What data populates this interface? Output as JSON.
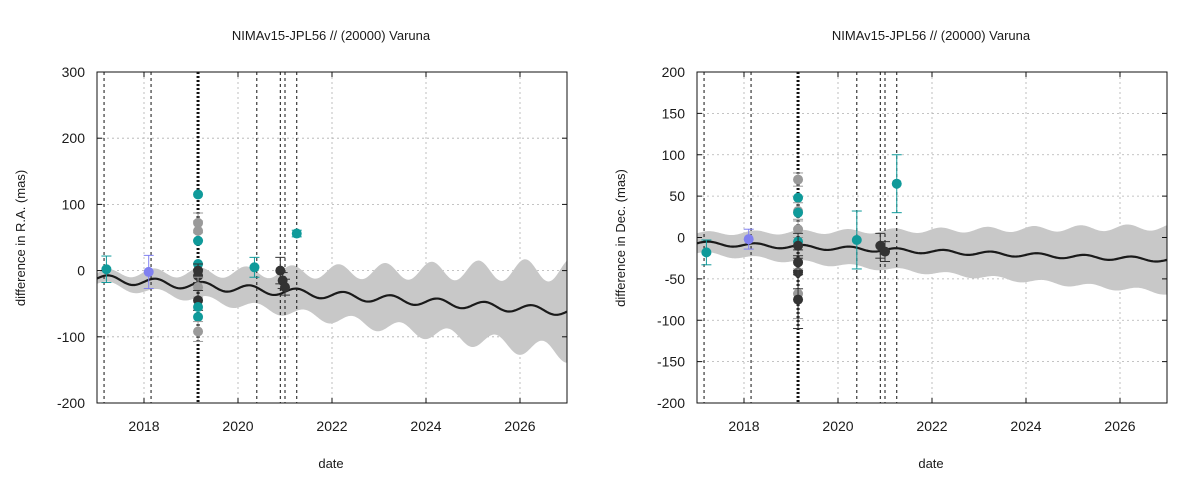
{
  "colors": {
    "band": "#c8c8c8",
    "model": "#1a1a1a",
    "teal": "#0f9a9a",
    "gray": "#9a9a9a",
    "dark": "#333333",
    "purple": "#8080f0",
    "grid": "#b0b0b0"
  },
  "chart_data": [
    {
      "type": "scatter",
      "title": "NIMAv15-JPL56 // (20000) Varuna",
      "xlabel": "date",
      "ylabel": "difference in R.A. (mas)",
      "xlim": [
        2017.0,
        2027.0
      ],
      "ylim": [
        -200,
        300
      ],
      "x_ticks": [
        2018,
        2020,
        2022,
        2024,
        2026
      ],
      "y_ticks": [
        -200,
        -100,
        0,
        100,
        200,
        300
      ],
      "grid": true,
      "event_lines": [
        2017.15,
        2018.15,
        2019.15,
        2020.4,
        2020.9,
        2021.0,
        2021.25
      ],
      "event_lines_bold": [
        2019.15
      ],
      "model": {
        "trend_start": -12,
        "trend_slope": -5.0,
        "amplitude": 6.0,
        "period": 1.0
      },
      "band": {
        "half_width_start": 8,
        "half_width_slope": 4.0,
        "osc_amplitude": 30,
        "phase_shift": 0.2
      },
      "points": [
        {
          "x": 2017.2,
          "y": 2,
          "err": 20,
          "color": "teal"
        },
        {
          "x": 2018.1,
          "y": -2,
          "err": 25,
          "color": "purple"
        },
        {
          "x": 2019.15,
          "y": 115,
          "err": 0,
          "color": "teal"
        },
        {
          "x": 2019.15,
          "y": 72,
          "err": 15,
          "color": "gray"
        },
        {
          "x": 2019.15,
          "y": 60,
          "err": 15,
          "color": "gray"
        },
        {
          "x": 2019.15,
          "y": 45,
          "err": 0,
          "color": "teal"
        },
        {
          "x": 2019.15,
          "y": 10,
          "err": 0,
          "color": "teal"
        },
        {
          "x": 2019.15,
          "y": 0,
          "err": 10,
          "color": "dark"
        },
        {
          "x": 2019.15,
          "y": -8,
          "err": 10,
          "color": "dark"
        },
        {
          "x": 2019.15,
          "y": -25,
          "err": 15,
          "color": "gray"
        },
        {
          "x": 2019.15,
          "y": -45,
          "err": 15,
          "color": "dark"
        },
        {
          "x": 2019.15,
          "y": -55,
          "err": 0,
          "color": "teal"
        },
        {
          "x": 2019.15,
          "y": -70,
          "err": 0,
          "color": "teal"
        },
        {
          "x": 2019.15,
          "y": -92,
          "err": 15,
          "color": "gray"
        },
        {
          "x": 2020.35,
          "y": 5,
          "err": 15,
          "color": "teal"
        },
        {
          "x": 2020.9,
          "y": 0,
          "err": 20,
          "color": "dark"
        },
        {
          "x": 2020.95,
          "y": -15,
          "err": 12,
          "color": "dark"
        },
        {
          "x": 2021.0,
          "y": -25,
          "err": 12,
          "color": "dark"
        },
        {
          "x": 2021.25,
          "y": 56,
          "err": 5,
          "color": "teal"
        }
      ]
    },
    {
      "type": "scatter",
      "title": "NIMAv15-JPL56 // (20000) Varuna",
      "xlabel": "date",
      "ylabel": "difference in Dec. (mas)",
      "xlim": [
        2017.0,
        2027.0
      ],
      "ylim": [
        -200,
        200
      ],
      "x_ticks": [
        2018,
        2020,
        2022,
        2024,
        2026
      ],
      "y_ticks": [
        -200,
        -150,
        -100,
        -50,
        0,
        50,
        100,
        150,
        200
      ],
      "grid": true,
      "event_lines": [
        2017.15,
        2018.15,
        2019.15,
        2020.4,
        2020.9,
        2021.0,
        2021.25
      ],
      "event_lines_bold": [
        2019.15
      ],
      "model": {
        "trend_start": -7,
        "trend_slope": -2.0,
        "amplitude": 2.5,
        "period": 1.0
      },
      "band": {
        "half_width_start": 12,
        "half_width_slope": 2.5,
        "osc_amplitude": 5,
        "phase_shift": 0.2
      },
      "points": [
        {
          "x": 2017.2,
          "y": -18,
          "err": 15,
          "color": "teal"
        },
        {
          "x": 2018.1,
          "y": -2,
          "err": 12,
          "color": "purple"
        },
        {
          "x": 2019.15,
          "y": 70,
          "err": 8,
          "color": "gray"
        },
        {
          "x": 2019.15,
          "y": 48,
          "err": 0,
          "color": "teal"
        },
        {
          "x": 2019.15,
          "y": 32,
          "err": 10,
          "color": "gray"
        },
        {
          "x": 2019.15,
          "y": 30,
          "err": 0,
          "color": "teal"
        },
        {
          "x": 2019.15,
          "y": 10,
          "err": 10,
          "color": "gray"
        },
        {
          "x": 2019.15,
          "y": -5,
          "err": 0,
          "color": "teal"
        },
        {
          "x": 2019.15,
          "y": -10,
          "err": 15,
          "color": "dark"
        },
        {
          "x": 2019.15,
          "y": -30,
          "err": 15,
          "color": "dark"
        },
        {
          "x": 2019.15,
          "y": -42,
          "err": 20,
          "color": "dark"
        },
        {
          "x": 2019.15,
          "y": -68,
          "err": 30,
          "color": "gray"
        },
        {
          "x": 2019.15,
          "y": -75,
          "err": 35,
          "color": "dark"
        },
        {
          "x": 2020.4,
          "y": -3,
          "err": 35,
          "color": "teal"
        },
        {
          "x": 2020.9,
          "y": -10,
          "err": 15,
          "color": "dark"
        },
        {
          "x": 2021.0,
          "y": -17,
          "err": 12,
          "color": "dark"
        },
        {
          "x": 2021.25,
          "y": 65,
          "err": 35,
          "color": "teal"
        }
      ]
    }
  ]
}
